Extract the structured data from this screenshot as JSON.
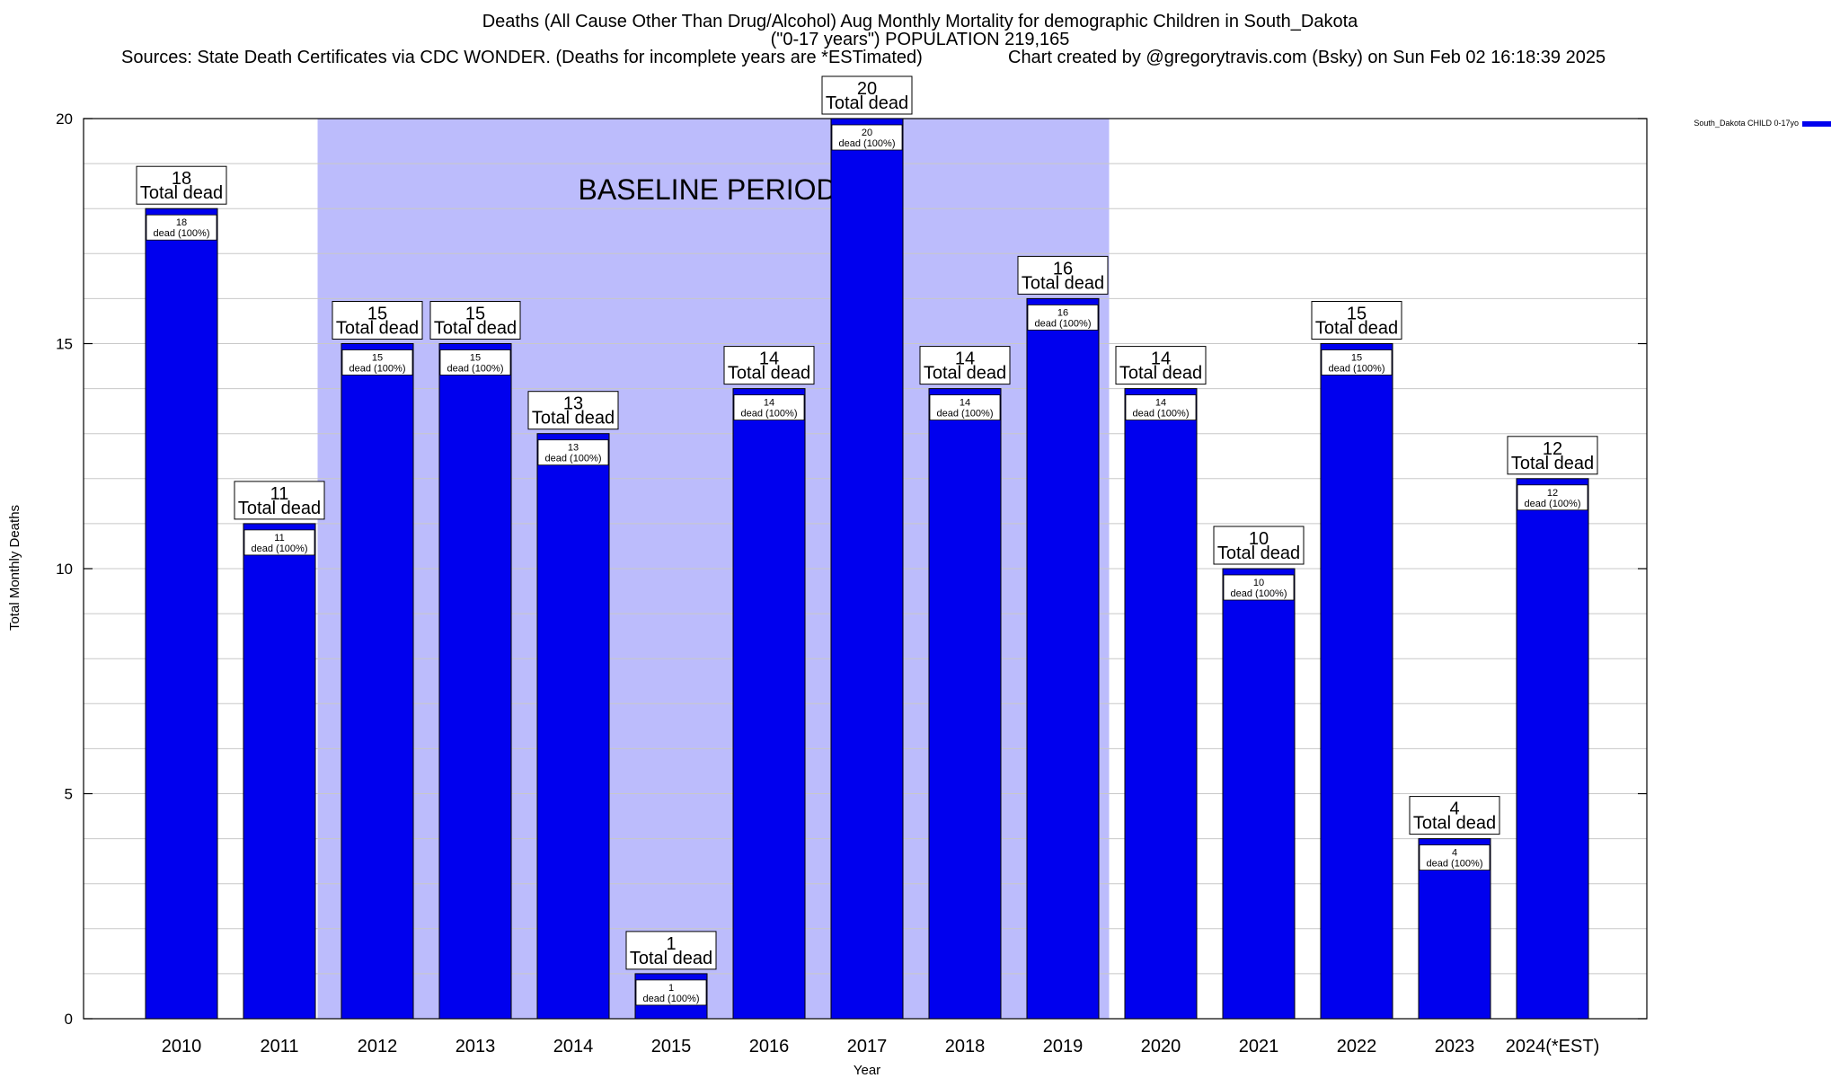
{
  "chart_data": {
    "type": "bar",
    "title": "Deaths (All Cause Other Than Drug/Alcohol) Aug Monthly Mortality for demographic Children in South_Dakota",
    "subtitle": "(\"0-17 years\") POPULATION 219,165",
    "source_note": "Sources: State Death Certificates via CDC WONDER. (Deaths for incomplete years are *ESTimated)",
    "credit": "Chart created by @gregorytravis.com (Bsky) on Sun Feb 02 16:18:39 2025",
    "xlabel": "Year",
    "ylabel": "Total Monthly Deaths",
    "ylim": [
      0,
      20
    ],
    "yticks": [
      0,
      5,
      10,
      15,
      20
    ],
    "minor_tick_step": 1,
    "grid": true,
    "legend_position": "top-right",
    "categories": [
      "2010",
      "2011",
      "2012",
      "2013",
      "2014",
      "2015",
      "2016",
      "2017",
      "2018",
      "2019",
      "2020",
      "2021",
      "2022",
      "2023",
      "2024(*EST)"
    ],
    "series": [
      {
        "name": "South_Dakota CHILD 0-17yo",
        "color": "#0000ee",
        "values": [
          18,
          11,
          15,
          15,
          13,
          1,
          14,
          20,
          14,
          16,
          14,
          10,
          15,
          4,
          12
        ]
      }
    ],
    "bar_outer_label": "Total dead",
    "bar_inner_label": "dead (100%)",
    "baseline_band": {
      "label": "BASELINE PERIOD",
      "from": "2012",
      "to": "2019",
      "color": "#bcbcfc"
    }
  }
}
